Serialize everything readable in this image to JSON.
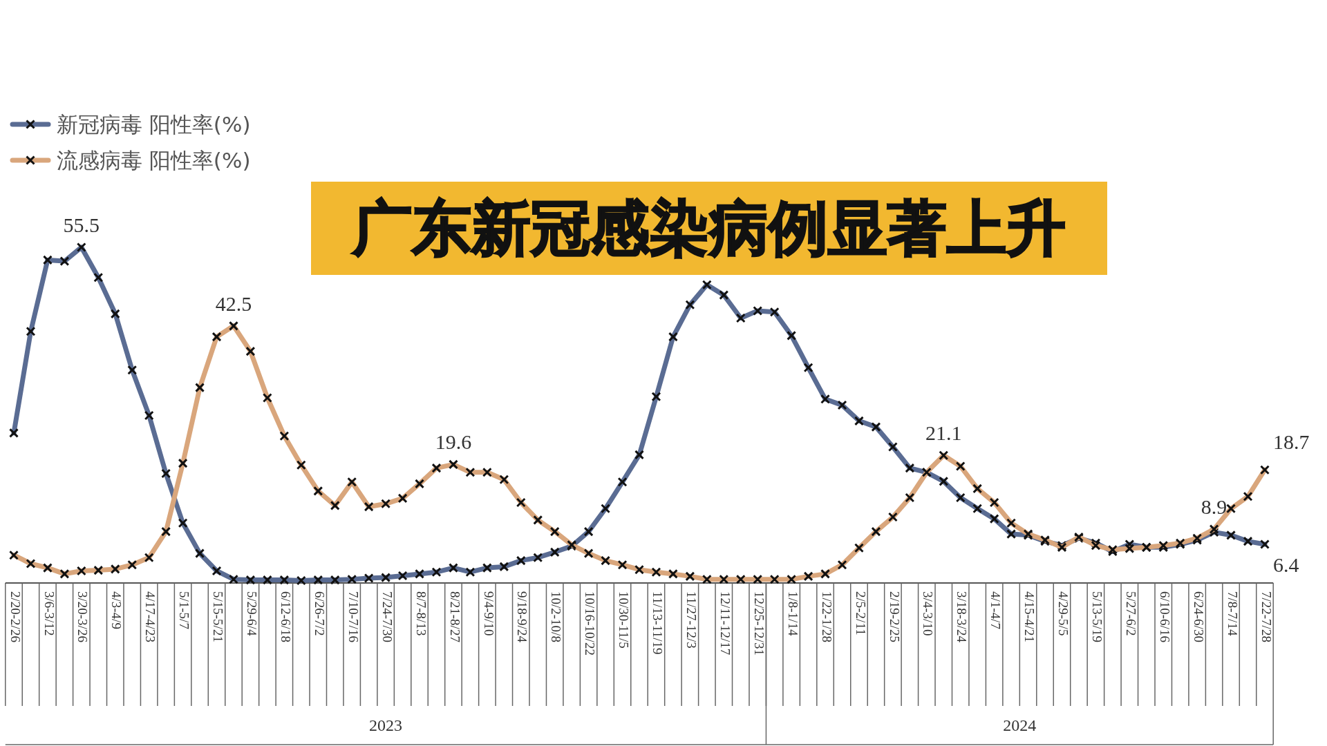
{
  "chart_data": {
    "type": "line",
    "title": "广东新冠感染病例显著上升",
    "categories": [
      "2/20-2/26",
      null,
      "3/6-3/12",
      null,
      "3/20-3/26",
      null,
      "4/3-4/9",
      null,
      "4/17-4/23",
      null,
      "5/1-5/7",
      null,
      "5/15-5/21",
      null,
      "5/29-6/4",
      null,
      "6/12-6/18",
      null,
      "6/26-7/2",
      null,
      "7/10-7/16",
      null,
      "7/24-7/30",
      null,
      "8/7-8/13",
      null,
      "8/21-8/27",
      null,
      "9/4-9/10",
      null,
      "9/18-9/24",
      null,
      "10/2-10/8",
      null,
      "10/16-10/22",
      null,
      "10/30-11/5",
      null,
      "11/13-11/19",
      null,
      "11/27-12/3",
      null,
      "12/11-12/17",
      null,
      "12/25-12/31",
      null,
      "1/8-1/14",
      null,
      "1/22-1/28",
      null,
      "2/5-2/11",
      null,
      "2/19-2/25",
      null,
      "3/4-3/10",
      null,
      "3/18-3/24",
      null,
      "4/1-4/7",
      null,
      "4/15-4/21",
      null,
      "4/29-5/5",
      null,
      "5/13-5/19",
      null,
      "5/27-6/2",
      null,
      "6/10-6/16",
      null,
      "6/24-6/30",
      null,
      "7/8-7/14",
      null,
      "7/22-7/28"
    ],
    "series": [
      {
        "name": "新冠病毒 阳性率(%)",
        "color": "#5a6c93",
        "values": [
          24.8,
          41.6,
          53.4,
          53.2,
          55.5,
          50.5,
          44.5,
          35.2,
          27.7,
          18.1,
          9.9,
          4.9,
          2.0,
          0.6,
          0.5,
          0.5,
          0.5,
          0.4,
          0.5,
          0.5,
          0.6,
          0.8,
          0.9,
          1.2,
          1.5,
          1.8,
          2.5,
          1.8,
          2.5,
          2.7,
          3.7,
          4.2,
          5.1,
          6.1,
          8.5,
          12.3,
          16.7,
          21.2,
          30.8,
          40.7,
          46.0,
          49.3,
          47.6,
          43.8,
          45.0,
          44.8,
          40.9,
          35.6,
          30.4,
          29.4,
          26.8,
          25.8,
          22.5,
          19.0,
          18.3,
          16.8,
          14.1,
          12.3,
          10.6,
          8.1,
          7.9,
          6.9,
          6.2,
          7.4,
          6.6,
          5.2,
          6.4,
          5.9,
          5.9,
          6.4,
          7.1,
          8.4,
          7.9,
          6.9,
          6.4
        ],
        "value_labels": [
          null,
          null,
          null,
          null,
          "55.5",
          null,
          null,
          null,
          null,
          null,
          null,
          null,
          null,
          null,
          null,
          null,
          null,
          null,
          null,
          null,
          null,
          null,
          null,
          null,
          null,
          null,
          null,
          null,
          null,
          null,
          null,
          null,
          null,
          null,
          null,
          null,
          null,
          null,
          null,
          null,
          null,
          null,
          null,
          null,
          null,
          null,
          null,
          null,
          null,
          null,
          null,
          null,
          null,
          null,
          null,
          null,
          null,
          null,
          null,
          null,
          null,
          null,
          null,
          null,
          null,
          null,
          null,
          null,
          null,
          null,
          null,
          null,
          null,
          null,
          "6.4"
        ]
      },
      {
        "name": "流感病毒 阳性率(%)",
        "color": "#d9a67c",
        "values": [
          4.6,
          3.2,
          2.5,
          1.5,
          2.0,
          2.1,
          2.3,
          3.0,
          4.2,
          8.5,
          19.8,
          32.3,
          40.7,
          42.5,
          38.3,
          30.6,
          24.3,
          19.5,
          15.2,
          12.8,
          16.7,
          12.6,
          13.1,
          14.0,
          16.4,
          19.0,
          19.6,
          18.3,
          18.3,
          17.1,
          13.3,
          10.4,
          8.5,
          6.3,
          4.9,
          3.7,
          3.0,
          2.2,
          1.8,
          1.5,
          1.1,
          0.6,
          0.6,
          0.6,
          0.6,
          0.6,
          0.6,
          1.1,
          1.5,
          3.0,
          5.8,
          8.5,
          10.9,
          14.1,
          18.3,
          21.1,
          19.3,
          15.6,
          13.3,
          9.9,
          8.1,
          7.1,
          5.9,
          7.6,
          6.2,
          5.5,
          5.7,
          5.9,
          6.2,
          6.6,
          7.4,
          8.9,
          12.3,
          14.3,
          18.7
        ],
        "value_labels": [
          null,
          null,
          null,
          null,
          null,
          null,
          null,
          null,
          null,
          null,
          null,
          null,
          null,
          "42.5",
          null,
          null,
          null,
          null,
          null,
          null,
          null,
          null,
          null,
          null,
          null,
          null,
          "19.6",
          null,
          null,
          null,
          null,
          null,
          null,
          null,
          null,
          null,
          null,
          null,
          null,
          null,
          null,
          null,
          null,
          null,
          null,
          null,
          null,
          null,
          null,
          null,
          null,
          null,
          null,
          null,
          null,
          "21.1",
          null,
          null,
          null,
          null,
          null,
          null,
          null,
          null,
          null,
          null,
          null,
          null,
          null,
          null,
          null,
          "8.9",
          null,
          null,
          "18.7"
        ]
      }
    ],
    "marker": "cross",
    "legend": "top left",
    "annotations": [
      "2023",
      "2024"
    ]
  }
}
